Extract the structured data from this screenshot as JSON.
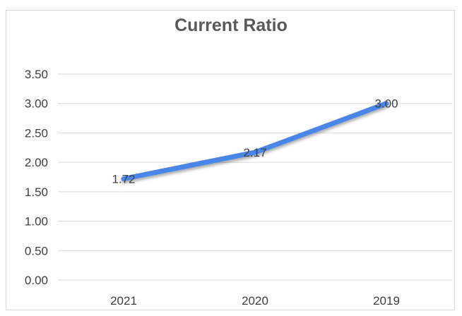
{
  "chart_data": {
    "type": "line",
    "title": "Current Ratio",
    "xlabel": "",
    "ylabel": "",
    "categories": [
      "2021",
      "2020",
      "2019"
    ],
    "series": [
      {
        "values": [
          1.72,
          2.17,
          3.0
        ],
        "labels": [
          "1.72",
          "2.17",
          "3.00"
        ]
      }
    ],
    "ylim": [
      0,
      3.5
    ],
    "yticks": [
      "0.00",
      "0.50",
      "1.00",
      "1.50",
      "2.00",
      "2.50",
      "3.00",
      "3.50"
    ],
    "grid": true,
    "legend": "none",
    "line_color": "#4a86e8",
    "grid_color": "#d9d9d9"
  }
}
